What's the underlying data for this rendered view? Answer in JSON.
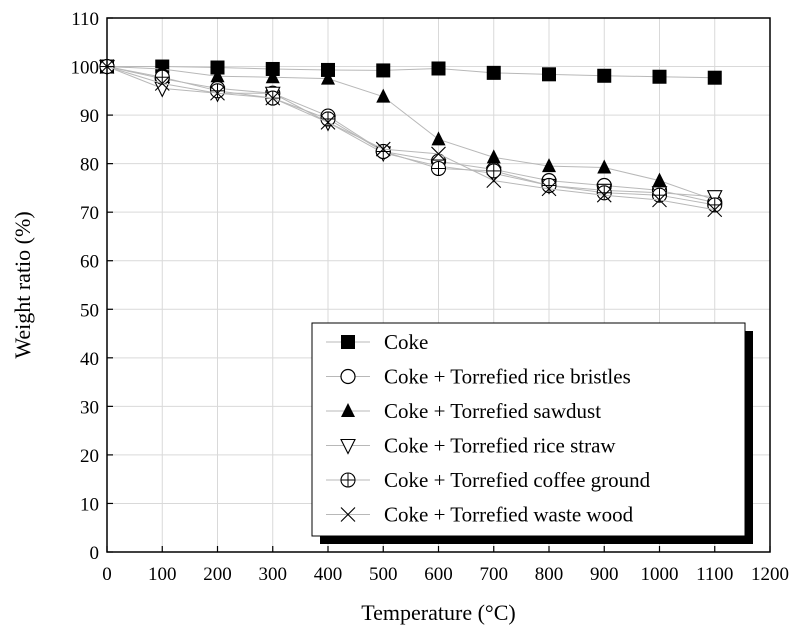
{
  "chart_data": {
    "type": "line",
    "title": "",
    "xlabel": "Temperature (°C)",
    "ylabel": "Weight ratio (%)",
    "xlim": [
      0,
      1200
    ],
    "ylim": [
      0,
      110
    ],
    "xticks": [
      "0",
      "100",
      "200",
      "300",
      "400",
      "500",
      "600",
      "700",
      "800",
      "900",
      "1000",
      "1100",
      "1200"
    ],
    "yticks": [
      "0",
      "10",
      "20",
      "30",
      "40",
      "50",
      "60",
      "70",
      "80",
      "90",
      "100",
      "110"
    ],
    "grid": true,
    "legend_position": "bottom-right",
    "x": [
      0,
      100,
      200,
      300,
      400,
      500,
      600,
      700,
      800,
      900,
      1000,
      1100
    ],
    "series": [
      {
        "name": "Coke",
        "marker": "square",
        "values": [
          100,
          100,
          99.8,
          99.5,
          99.3,
          99.2,
          99.6,
          98.7,
          98.4,
          98.1,
          97.9,
          97.7
        ]
      },
      {
        "name": "Coke + Torrefied rice bristles",
        "marker": "circle",
        "values": [
          100,
          97.5,
          95.5,
          94.5,
          89.8,
          82.5,
          80.5,
          78.8,
          76.5,
          75.5,
          74.5,
          72
        ]
      },
      {
        "name": "Coke + Torrefied sawdust",
        "marker": "triangle-up",
        "values": [
          100,
          99.5,
          98,
          97.8,
          97.5,
          93.8,
          85,
          81.3,
          79.5,
          79.2,
          76.5,
          72.5
        ]
      },
      {
        "name": "Coke + Torrefied rice straw",
        "marker": "triangle-down",
        "values": [
          100,
          95.5,
          94.5,
          94.5,
          88.5,
          82.2,
          79.5,
          78,
          75.5,
          74.5,
          74,
          73.2
        ]
      },
      {
        "name": "Coke + Torrefied coffee ground",
        "marker": "circle-cross",
        "values": [
          100,
          97.8,
          95,
          93.5,
          89.2,
          82.5,
          79,
          78.5,
          75.5,
          74,
          73.5,
          71.5
        ]
      },
      {
        "name": "Coke + Torrefied waste wood",
        "marker": "x-cross",
        "values": [
          100,
          96.5,
          94.5,
          93.5,
          88.5,
          83,
          82,
          76.5,
          74.8,
          73.5,
          72.5,
          70.5
        ]
      }
    ]
  }
}
